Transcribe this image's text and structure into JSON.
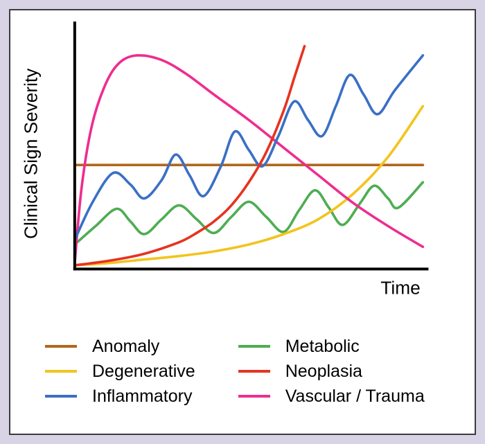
{
  "page": {
    "background_color": "#d9d3e6",
    "panel_border_color": "#3c3c3c",
    "panel_background": "#ffffff"
  },
  "chart_data": {
    "type": "line",
    "title": "",
    "xlabel": "Time",
    "ylabel": "Clinical Sign Severity",
    "x_range": [
      0,
      1
    ],
    "y_range": [
      0,
      1
    ],
    "grid": false,
    "axes_color": "#000000",
    "legend_position": "below",
    "series": [
      {
        "name": "Anomaly",
        "color": "#b2661c",
        "shape": "constant horizontal line at mid severity",
        "points": [
          [
            0,
            0.445
          ],
          [
            1,
            0.445
          ]
        ]
      },
      {
        "name": "Metabolic",
        "color": "#4ead52",
        "shape": "low-amplitude oscillation, slowly rising",
        "points": [
          [
            0,
            0.1
          ],
          [
            0.06,
            0.18
          ],
          [
            0.12,
            0.255
          ],
          [
            0.16,
            0.2
          ],
          [
            0.2,
            0.145
          ],
          [
            0.25,
            0.21
          ],
          [
            0.3,
            0.27
          ],
          [
            0.35,
            0.21
          ],
          [
            0.4,
            0.15
          ],
          [
            0.45,
            0.22
          ],
          [
            0.5,
            0.285
          ],
          [
            0.55,
            0.22
          ],
          [
            0.6,
            0.155
          ],
          [
            0.645,
            0.25
          ],
          [
            0.69,
            0.335
          ],
          [
            0.73,
            0.26
          ],
          [
            0.77,
            0.185
          ],
          [
            0.82,
            0.28
          ],
          [
            0.86,
            0.355
          ],
          [
            0.9,
            0.3
          ],
          [
            0.93,
            0.26
          ],
          [
            1.0,
            0.37
          ]
        ]
      },
      {
        "name": "Degenerative",
        "color": "#f2c41d",
        "shape": "slow exponential increase",
        "points": [
          [
            0,
            0.01
          ],
          [
            0.1,
            0.02
          ],
          [
            0.2,
            0.035
          ],
          [
            0.3,
            0.05
          ],
          [
            0.4,
            0.07
          ],
          [
            0.5,
            0.1
          ],
          [
            0.6,
            0.145
          ],
          [
            0.7,
            0.21
          ],
          [
            0.8,
            0.32
          ],
          [
            0.9,
            0.48
          ],
          [
            1.0,
            0.7
          ]
        ]
      },
      {
        "name": "Vascular / Trauma",
        "color": "#ee2d8f",
        "shape": "rapid onset peak then gradual decline",
        "points": [
          [
            0,
            0.02
          ],
          [
            0.02,
            0.35
          ],
          [
            0.05,
            0.62
          ],
          [
            0.09,
            0.8
          ],
          [
            0.13,
            0.89
          ],
          [
            0.18,
            0.92
          ],
          [
            0.25,
            0.9
          ],
          [
            0.32,
            0.84
          ],
          [
            0.4,
            0.75
          ],
          [
            0.5,
            0.64
          ],
          [
            0.6,
            0.52
          ],
          [
            0.7,
            0.4
          ],
          [
            0.8,
            0.28
          ],
          [
            0.9,
            0.18
          ],
          [
            1.0,
            0.09
          ]
        ]
      },
      {
        "name": "Inflammatory",
        "color": "#3a6fc6",
        "shape": "waxing-waning oscillation trending upward",
        "points": [
          [
            0,
            0.12
          ],
          [
            0.05,
            0.28
          ],
          [
            0.11,
            0.41
          ],
          [
            0.16,
            0.36
          ],
          [
            0.2,
            0.3
          ],
          [
            0.25,
            0.38
          ],
          [
            0.29,
            0.49
          ],
          [
            0.33,
            0.4
          ],
          [
            0.37,
            0.31
          ],
          [
            0.42,
            0.44
          ],
          [
            0.46,
            0.59
          ],
          [
            0.5,
            0.51
          ],
          [
            0.54,
            0.44
          ],
          [
            0.585,
            0.57
          ],
          [
            0.63,
            0.72
          ],
          [
            0.67,
            0.64
          ],
          [
            0.71,
            0.57
          ],
          [
            0.75,
            0.7
          ],
          [
            0.79,
            0.835
          ],
          [
            0.83,
            0.75
          ],
          [
            0.87,
            0.665
          ],
          [
            0.92,
            0.77
          ],
          [
            1.0,
            0.92
          ]
        ]
      },
      {
        "name": "Neoplasia",
        "color": "#e6331f",
        "shape": "steep exponential increase",
        "points": [
          [
            0,
            0.01
          ],
          [
            0.1,
            0.03
          ],
          [
            0.2,
            0.06
          ],
          [
            0.3,
            0.11
          ],
          [
            0.35,
            0.15
          ],
          [
            0.4,
            0.2
          ],
          [
            0.45,
            0.27
          ],
          [
            0.5,
            0.37
          ],
          [
            0.55,
            0.5
          ],
          [
            0.6,
            0.68
          ],
          [
            0.63,
            0.82
          ],
          [
            0.66,
            0.96
          ]
        ]
      }
    ]
  },
  "legend": {
    "columns": [
      [
        "Anomaly",
        "Degenerative",
        "Inflammatory"
      ],
      [
        "Metabolic",
        "Neoplasia",
        "Vascular / Trauma"
      ]
    ]
  }
}
